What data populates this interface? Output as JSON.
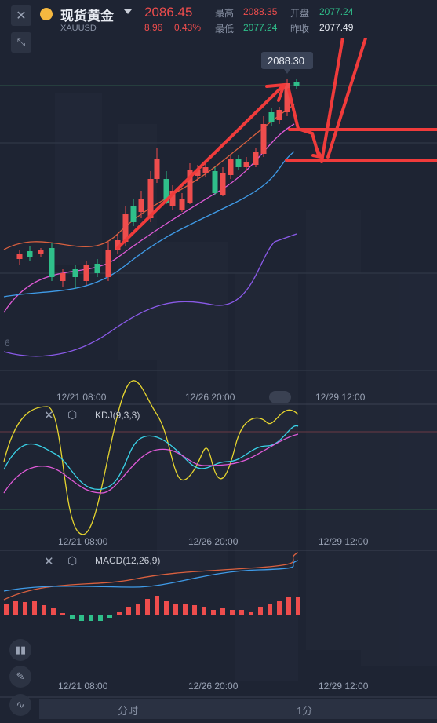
{
  "header": {
    "title": "现货黄金",
    "symbol": "XAUUSD",
    "price": "2086.45",
    "change": "8.96",
    "change_pct": "0.43%",
    "high_label": "最高",
    "high_value": "2088.35",
    "low_label": "最低",
    "low_value": "2077.24",
    "open_label": "开盘",
    "open_value": "2077.24",
    "prev_close_label": "昨收",
    "prev_close_value": "2077.49"
  },
  "main_chart": {
    "price_tag": "2088.30",
    "left_edge_label": "6",
    "x_labels": [
      "12/21 08:00",
      "12/26 20:00",
      "12/29 12:00"
    ]
  },
  "kdj": {
    "label": "KDJ(9,3,3)",
    "x_labels": [
      "12/21 08:00",
      "12/26 20:00",
      "12/29 12:00"
    ]
  },
  "macd": {
    "label": "MACD(12,26,9)",
    "x_labels": [
      "12/21 08:00",
      "12/26 20:00",
      "12/29 12:00"
    ]
  },
  "bottom_tabs": {
    "tab1": "分时",
    "tab2": "1分"
  },
  "colors": {
    "up": "#ee4d4d",
    "down": "#2fbf8a",
    "background": "#1e2433"
  },
  "icons": [
    "close-icon",
    "gold-icon",
    "dropdown-icon",
    "collapse-icon",
    "settings-icon",
    "candle-type-icon",
    "draw-icon",
    "indicator-icon"
  ]
}
